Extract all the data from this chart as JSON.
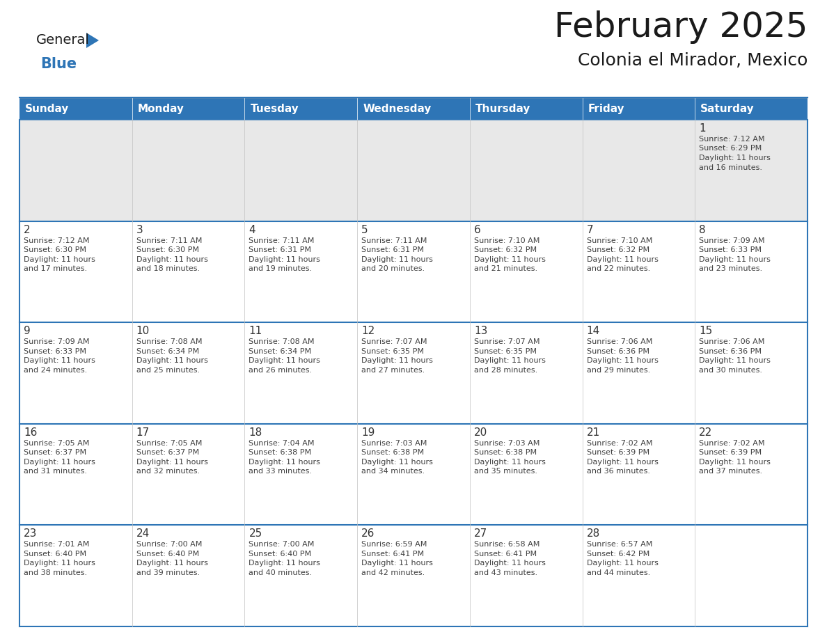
{
  "title": "February 2025",
  "subtitle": "Colonia el Mirador, Mexico",
  "header_color": "#2E75B6",
  "header_text_color": "#FFFFFF",
  "row0_bg_color": "#E8E8E8",
  "cell_bg_color": "#FFFFFF",
  "border_color": "#2E75B6",
  "row_separator_color": "#2E75B6",
  "grid_line_color": "#C0C0C0",
  "text_color": "#404040",
  "day_number_color": "#333333",
  "weekdays": [
    "Sunday",
    "Monday",
    "Tuesday",
    "Wednesday",
    "Thursday",
    "Friday",
    "Saturday"
  ],
  "days_data": [
    {
      "day": 1,
      "col": 6,
      "row": 0,
      "sunrise": "7:12 AM",
      "sunset": "6:29 PM",
      "daylight": "11 hours and 16 minutes."
    },
    {
      "day": 2,
      "col": 0,
      "row": 1,
      "sunrise": "7:12 AM",
      "sunset": "6:30 PM",
      "daylight": "11 hours and 17 minutes."
    },
    {
      "day": 3,
      "col": 1,
      "row": 1,
      "sunrise": "7:11 AM",
      "sunset": "6:30 PM",
      "daylight": "11 hours and 18 minutes."
    },
    {
      "day": 4,
      "col": 2,
      "row": 1,
      "sunrise": "7:11 AM",
      "sunset": "6:31 PM",
      "daylight": "11 hours and 19 minutes."
    },
    {
      "day": 5,
      "col": 3,
      "row": 1,
      "sunrise": "7:11 AM",
      "sunset": "6:31 PM",
      "daylight": "11 hours and 20 minutes."
    },
    {
      "day": 6,
      "col": 4,
      "row": 1,
      "sunrise": "7:10 AM",
      "sunset": "6:32 PM",
      "daylight": "11 hours and 21 minutes."
    },
    {
      "day": 7,
      "col": 5,
      "row": 1,
      "sunrise": "7:10 AM",
      "sunset": "6:32 PM",
      "daylight": "11 hours and 22 minutes."
    },
    {
      "day": 8,
      "col": 6,
      "row": 1,
      "sunrise": "7:09 AM",
      "sunset": "6:33 PM",
      "daylight": "11 hours and 23 minutes."
    },
    {
      "day": 9,
      "col": 0,
      "row": 2,
      "sunrise": "7:09 AM",
      "sunset": "6:33 PM",
      "daylight": "11 hours and 24 minutes."
    },
    {
      "day": 10,
      "col": 1,
      "row": 2,
      "sunrise": "7:08 AM",
      "sunset": "6:34 PM",
      "daylight": "11 hours and 25 minutes."
    },
    {
      "day": 11,
      "col": 2,
      "row": 2,
      "sunrise": "7:08 AM",
      "sunset": "6:34 PM",
      "daylight": "11 hours and 26 minutes."
    },
    {
      "day": 12,
      "col": 3,
      "row": 2,
      "sunrise": "7:07 AM",
      "sunset": "6:35 PM",
      "daylight": "11 hours and 27 minutes."
    },
    {
      "day": 13,
      "col": 4,
      "row": 2,
      "sunrise": "7:07 AM",
      "sunset": "6:35 PM",
      "daylight": "11 hours and 28 minutes."
    },
    {
      "day": 14,
      "col": 5,
      "row": 2,
      "sunrise": "7:06 AM",
      "sunset": "6:36 PM",
      "daylight": "11 hours and 29 minutes."
    },
    {
      "day": 15,
      "col": 6,
      "row": 2,
      "sunrise": "7:06 AM",
      "sunset": "6:36 PM",
      "daylight": "11 hours and 30 minutes."
    },
    {
      "day": 16,
      "col": 0,
      "row": 3,
      "sunrise": "7:05 AM",
      "sunset": "6:37 PM",
      "daylight": "11 hours and 31 minutes."
    },
    {
      "day": 17,
      "col": 1,
      "row": 3,
      "sunrise": "7:05 AM",
      "sunset": "6:37 PM",
      "daylight": "11 hours and 32 minutes."
    },
    {
      "day": 18,
      "col": 2,
      "row": 3,
      "sunrise": "7:04 AM",
      "sunset": "6:38 PM",
      "daylight": "11 hours and 33 minutes."
    },
    {
      "day": 19,
      "col": 3,
      "row": 3,
      "sunrise": "7:03 AM",
      "sunset": "6:38 PM",
      "daylight": "11 hours and 34 minutes."
    },
    {
      "day": 20,
      "col": 4,
      "row": 3,
      "sunrise": "7:03 AM",
      "sunset": "6:38 PM",
      "daylight": "11 hours and 35 minutes."
    },
    {
      "day": 21,
      "col": 5,
      "row": 3,
      "sunrise": "7:02 AM",
      "sunset": "6:39 PM",
      "daylight": "11 hours and 36 minutes."
    },
    {
      "day": 22,
      "col": 6,
      "row": 3,
      "sunrise": "7:02 AM",
      "sunset": "6:39 PM",
      "daylight": "11 hours and 37 minutes."
    },
    {
      "day": 23,
      "col": 0,
      "row": 4,
      "sunrise": "7:01 AM",
      "sunset": "6:40 PM",
      "daylight": "11 hours and 38 minutes."
    },
    {
      "day": 24,
      "col": 1,
      "row": 4,
      "sunrise": "7:00 AM",
      "sunset": "6:40 PM",
      "daylight": "11 hours and 39 minutes."
    },
    {
      "day": 25,
      "col": 2,
      "row": 4,
      "sunrise": "7:00 AM",
      "sunset": "6:40 PM",
      "daylight": "11 hours and 40 minutes."
    },
    {
      "day": 26,
      "col": 3,
      "row": 4,
      "sunrise": "6:59 AM",
      "sunset": "6:41 PM",
      "daylight": "11 hours and 42 minutes."
    },
    {
      "day": 27,
      "col": 4,
      "row": 4,
      "sunrise": "6:58 AM",
      "sunset": "6:41 PM",
      "daylight": "11 hours and 43 minutes."
    },
    {
      "day": 28,
      "col": 5,
      "row": 4,
      "sunrise": "6:57 AM",
      "sunset": "6:42 PM",
      "daylight": "11 hours and 44 minutes."
    }
  ],
  "num_rows": 5,
  "num_cols": 7,
  "logo_triangle_color": "#2E75B6",
  "title_fontsize": 36,
  "subtitle_fontsize": 18,
  "weekday_fontsize": 11,
  "day_num_fontsize": 11,
  "cell_text_fontsize": 8
}
